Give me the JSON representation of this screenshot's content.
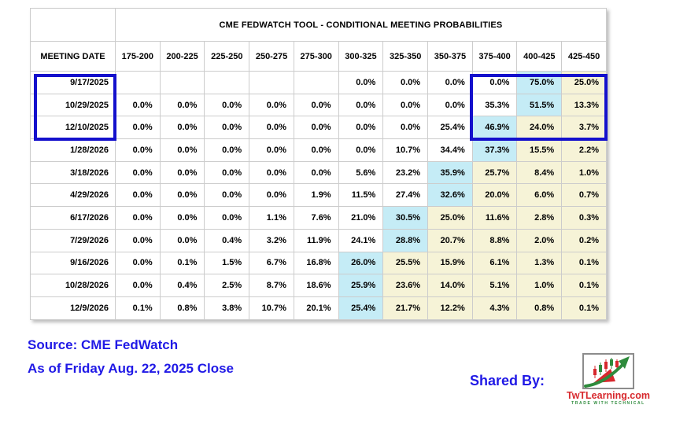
{
  "chart_data": {
    "type": "table",
    "title": "CME FEDWATCH TOOL - CONDITIONAL MEETING PROBABILITIES",
    "row_header": "MEETING DATE",
    "columns": [
      "175-200",
      "200-225",
      "225-250",
      "250-275",
      "275-300",
      "300-325",
      "325-350",
      "350-375",
      "375-400",
      "400-425",
      "425-450"
    ],
    "rows": [
      {
        "date": "9/17/2025",
        "values": [
          "",
          "",
          "",
          "",
          "",
          "0.0%",
          "0.0%",
          "0.0%",
          "0.0%",
          "75.0%",
          "25.0%"
        ],
        "highlights": [
          "",
          "",
          "",
          "",
          "",
          "",
          "",
          "",
          "",
          "c",
          "y"
        ]
      },
      {
        "date": "10/29/2025",
        "values": [
          "0.0%",
          "0.0%",
          "0.0%",
          "0.0%",
          "0.0%",
          "0.0%",
          "0.0%",
          "0.0%",
          "35.3%",
          "51.5%",
          "13.3%"
        ],
        "highlights": [
          "",
          "",
          "",
          "",
          "",
          "",
          "",
          "",
          "",
          "c",
          "y"
        ]
      },
      {
        "date": "12/10/2025",
        "values": [
          "0.0%",
          "0.0%",
          "0.0%",
          "0.0%",
          "0.0%",
          "0.0%",
          "0.0%",
          "25.4%",
          "46.9%",
          "24.0%",
          "3.7%"
        ],
        "highlights": [
          "",
          "",
          "",
          "",
          "",
          "",
          "",
          "",
          "c",
          "y",
          "y"
        ]
      },
      {
        "date": "1/28/2026",
        "values": [
          "0.0%",
          "0.0%",
          "0.0%",
          "0.0%",
          "0.0%",
          "0.0%",
          "10.7%",
          "34.4%",
          "37.3%",
          "15.5%",
          "2.2%"
        ],
        "highlights": [
          "",
          "",
          "",
          "",
          "",
          "",
          "",
          "",
          "c",
          "y",
          "y"
        ]
      },
      {
        "date": "3/18/2026",
        "values": [
          "0.0%",
          "0.0%",
          "0.0%",
          "0.0%",
          "0.0%",
          "5.6%",
          "23.2%",
          "35.9%",
          "25.7%",
          "8.4%",
          "1.0%"
        ],
        "highlights": [
          "",
          "",
          "",
          "",
          "",
          "",
          "",
          "c",
          "y",
          "y",
          "y"
        ]
      },
      {
        "date": "4/29/2026",
        "values": [
          "0.0%",
          "0.0%",
          "0.0%",
          "0.0%",
          "1.9%",
          "11.5%",
          "27.4%",
          "32.6%",
          "20.0%",
          "6.0%",
          "0.7%"
        ],
        "highlights": [
          "",
          "",
          "",
          "",
          "",
          "",
          "",
          "c",
          "y",
          "y",
          "y"
        ]
      },
      {
        "date": "6/17/2026",
        "values": [
          "0.0%",
          "0.0%",
          "0.0%",
          "1.1%",
          "7.6%",
          "21.0%",
          "30.5%",
          "25.0%",
          "11.6%",
          "2.8%",
          "0.3%"
        ],
        "highlights": [
          "",
          "",
          "",
          "",
          "",
          "",
          "c",
          "y",
          "y",
          "y",
          "y"
        ]
      },
      {
        "date": "7/29/2026",
        "values": [
          "0.0%",
          "0.0%",
          "0.4%",
          "3.2%",
          "11.9%",
          "24.1%",
          "28.8%",
          "20.7%",
          "8.8%",
          "2.0%",
          "0.2%"
        ],
        "highlights": [
          "",
          "",
          "",
          "",
          "",
          "",
          "c",
          "y",
          "y",
          "y",
          "y"
        ]
      },
      {
        "date": "9/16/2026",
        "values": [
          "0.0%",
          "0.1%",
          "1.5%",
          "6.7%",
          "16.8%",
          "26.0%",
          "25.5%",
          "15.9%",
          "6.1%",
          "1.3%",
          "0.1%"
        ],
        "highlights": [
          "",
          "",
          "",
          "",
          "",
          "c",
          "y",
          "y",
          "y",
          "y",
          "y"
        ]
      },
      {
        "date": "10/28/2026",
        "values": [
          "0.0%",
          "0.4%",
          "2.5%",
          "8.7%",
          "18.6%",
          "25.9%",
          "23.6%",
          "14.0%",
          "5.1%",
          "1.0%",
          "0.1%"
        ],
        "highlights": [
          "",
          "",
          "",
          "",
          "",
          "c",
          "y",
          "y",
          "y",
          "y",
          "y"
        ]
      },
      {
        "date": "12/9/2026",
        "values": [
          "0.1%",
          "0.8%",
          "3.8%",
          "10.7%",
          "20.1%",
          "25.4%",
          "21.7%",
          "12.2%",
          "4.3%",
          "0.8%",
          "0.1%"
        ],
        "highlights": [
          "",
          "",
          "",
          "",
          "",
          "c",
          "y",
          "y",
          "y",
          "y",
          "y"
        ]
      }
    ],
    "annotations": {
      "boxed_dates": [
        "9/17/2025",
        "10/29/2025",
        "12/10/2025"
      ],
      "boxed_columns": [
        "375-400",
        "400-425",
        "425-450"
      ]
    },
    "layout": {
      "grid": true,
      "highlight_styles": {
        "c": "cyan",
        "y": "cream"
      }
    }
  },
  "footer": {
    "source_line": "Source: CME FedWatch",
    "asof_line": "As of Friday Aug. 22, 2025 Close",
    "shared_by_label": "Shared By:",
    "logo_text": "TwTLearning.com",
    "logo_tagline": "TRADE WITH TECHNICAL"
  },
  "colors": {
    "highlight_cyan": "#c5ecf6",
    "highlight_cream": "#f6f3d7",
    "annotation_blue": "#1410cc",
    "footer_blue": "#2019e6",
    "logo_red": "#d7282d",
    "logo_green": "#2e8b3c"
  }
}
